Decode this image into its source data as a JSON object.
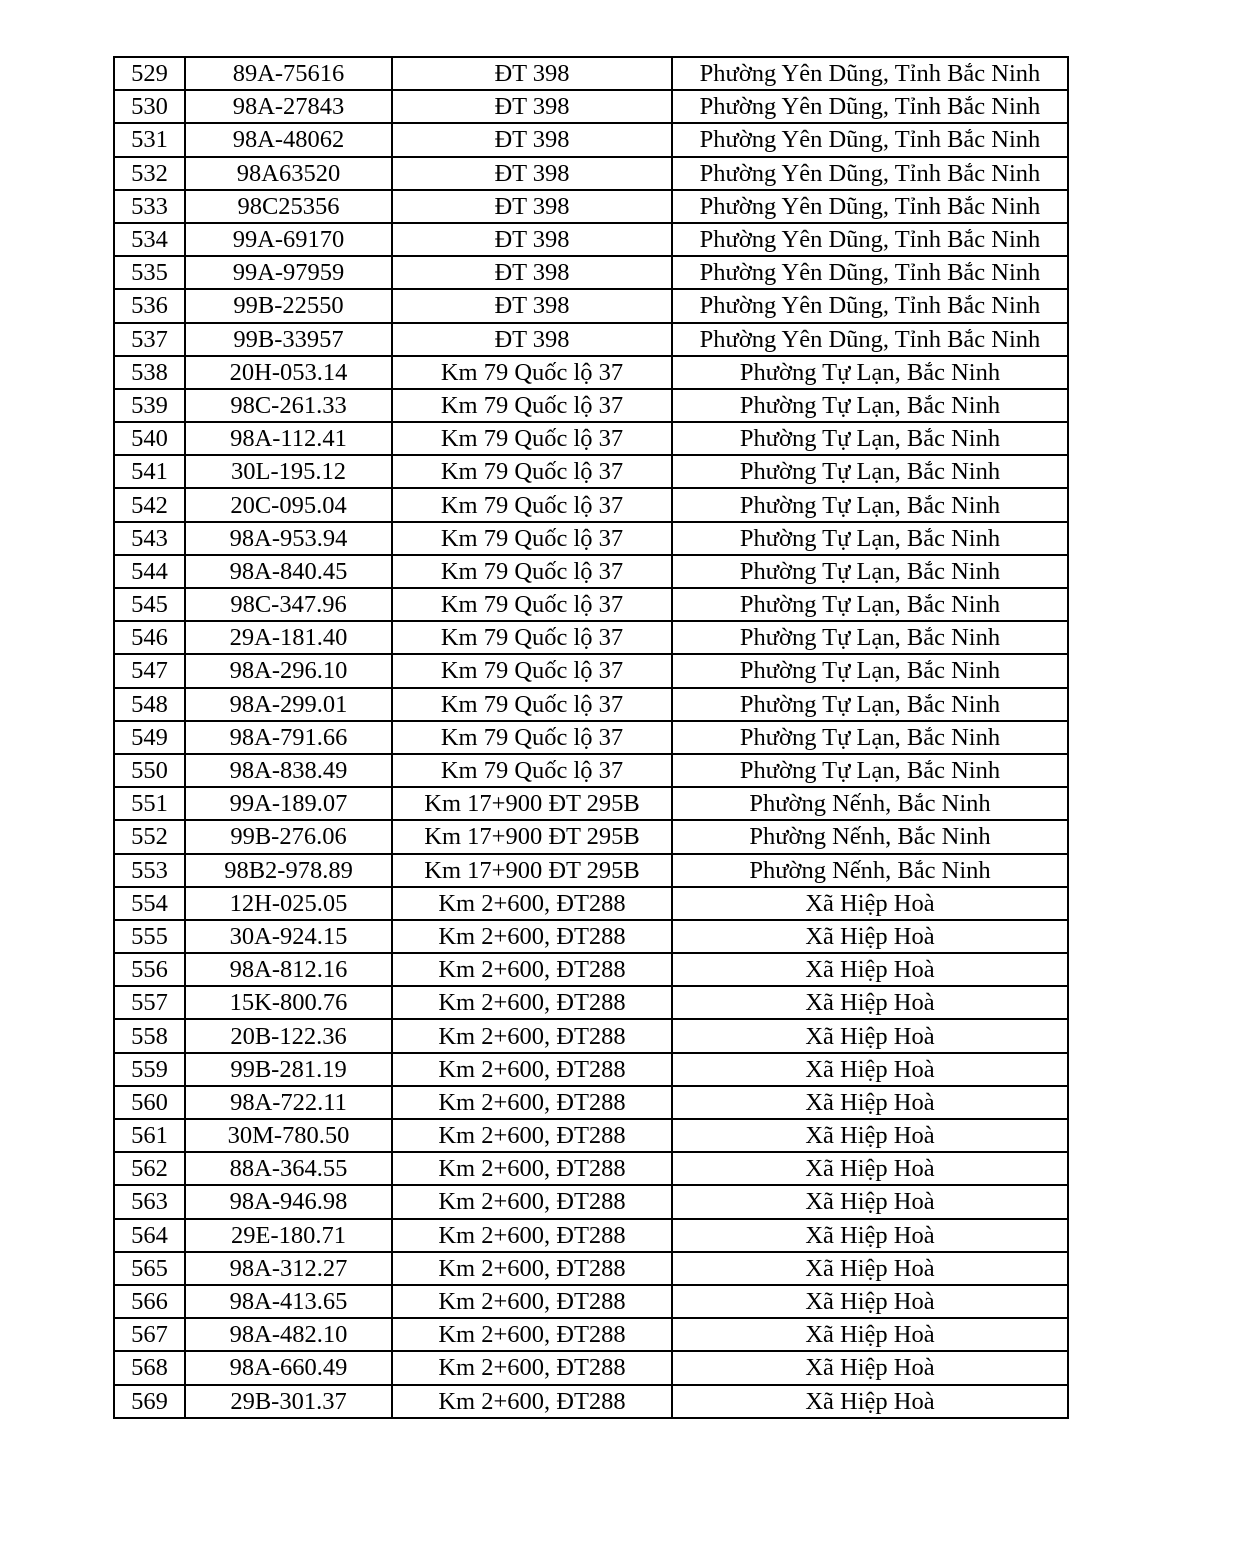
{
  "table": {
    "rows": [
      [
        "529",
        "89A-75616",
        "ĐT 398",
        "Phường Yên Dũng, Tỉnh Bắc Ninh"
      ],
      [
        "530",
        "98A-27843",
        "ĐT 398",
        "Phường Yên Dũng, Tỉnh Bắc Ninh"
      ],
      [
        "531",
        "98A-48062",
        "ĐT 398",
        "Phường Yên Dũng, Tỉnh Bắc Ninh"
      ],
      [
        "532",
        "98A63520",
        "ĐT 398",
        "Phường Yên Dũng, Tỉnh Bắc Ninh"
      ],
      [
        "533",
        "98C25356",
        "ĐT 398",
        "Phường Yên Dũng, Tỉnh Bắc Ninh"
      ],
      [
        "534",
        "99A-69170",
        "ĐT 398",
        "Phường Yên Dũng, Tỉnh Bắc Ninh"
      ],
      [
        "535",
        "99A-97959",
        "ĐT 398",
        "Phường Yên Dũng, Tỉnh Bắc Ninh"
      ],
      [
        "536",
        "99B-22550",
        "ĐT 398",
        "Phường Yên Dũng, Tỉnh Bắc Ninh"
      ],
      [
        "537",
        "99B-33957",
        "ĐT 398",
        "Phường Yên Dũng, Tỉnh Bắc Ninh"
      ],
      [
        "538",
        "20H-053.14",
        "Km 79 Quốc lộ 37",
        "Phường Tự Lạn, Bắc Ninh"
      ],
      [
        "539",
        "98C-261.33",
        "Km 79 Quốc lộ 37",
        "Phường Tự Lạn, Bắc Ninh"
      ],
      [
        "540",
        "98A-112.41",
        "Km 79 Quốc lộ 37",
        "Phường Tự Lạn, Bắc Ninh"
      ],
      [
        "541",
        "30L-195.12",
        "Km 79 Quốc lộ 37",
        "Phường Tự Lạn, Bắc Ninh"
      ],
      [
        "542",
        "20C-095.04",
        "Km 79 Quốc lộ 37",
        "Phường Tự Lạn, Bắc Ninh"
      ],
      [
        "543",
        "98A-953.94",
        "Km 79 Quốc lộ 37",
        "Phường Tự Lạn, Bắc Ninh"
      ],
      [
        "544",
        "98A-840.45",
        "Km 79 Quốc lộ 37",
        "Phường Tự Lạn, Bắc Ninh"
      ],
      [
        "545",
        "98C-347.96",
        "Km 79 Quốc lộ 37",
        "Phường Tự Lạn, Bắc Ninh"
      ],
      [
        "546",
        "29A-181.40",
        "Km 79 Quốc lộ 37",
        "Phường Tự Lạn, Bắc Ninh"
      ],
      [
        "547",
        "98A-296.10",
        "Km 79 Quốc lộ 37",
        "Phường Tự Lạn, Bắc Ninh"
      ],
      [
        "548",
        "98A-299.01",
        "Km 79 Quốc lộ 37",
        "Phường Tự Lạn, Bắc Ninh"
      ],
      [
        "549",
        "98A-791.66",
        "Km 79 Quốc lộ 37",
        "Phường Tự Lạn, Bắc Ninh"
      ],
      [
        "550",
        "98A-838.49",
        "Km 79 Quốc lộ 37",
        "Phường Tự Lạn, Bắc Ninh"
      ],
      [
        "551",
        "99A-189.07",
        "Km 17+900 ĐT 295B",
        "Phường Nếnh, Bắc Ninh"
      ],
      [
        "552",
        "99B-276.06",
        "Km 17+900 ĐT 295B",
        "Phường Nếnh, Bắc Ninh"
      ],
      [
        "553",
        "98B2-978.89",
        "Km 17+900 ĐT 295B",
        "Phường Nếnh, Bắc Ninh"
      ],
      [
        "554",
        "12H-025.05",
        "Km 2+600, ĐT288",
        "Xã Hiệp Hoà"
      ],
      [
        "555",
        "30A-924.15",
        "Km 2+600, ĐT288",
        "Xã Hiệp Hoà"
      ],
      [
        "556",
        "98A-812.16",
        "Km 2+600, ĐT288",
        "Xã Hiệp Hoà"
      ],
      [
        "557",
        "15K-800.76",
        "Km 2+600, ĐT288",
        "Xã Hiệp Hoà"
      ],
      [
        "558",
        "20B-122.36",
        "Km 2+600, ĐT288",
        "Xã Hiệp Hoà"
      ],
      [
        "559",
        "99B-281.19",
        "Km 2+600, ĐT288",
        "Xã Hiệp Hoà"
      ],
      [
        "560",
        "98A-722.11",
        "Km 2+600, ĐT288",
        "Xã Hiệp Hoà"
      ],
      [
        "561",
        "30M-780.50",
        "Km 2+600, ĐT288",
        "Xã Hiệp Hoà"
      ],
      [
        "562",
        "88A-364.55",
        "Km 2+600, ĐT288",
        "Xã Hiệp Hoà"
      ],
      [
        "563",
        "98A-946.98",
        "Km 2+600, ĐT288",
        "Xã Hiệp Hoà"
      ],
      [
        "564",
        "29E-180.71",
        "Km 2+600, ĐT288",
        "Xã Hiệp Hoà"
      ],
      [
        "565",
        "98A-312.27",
        "Km 2+600, ĐT288",
        "Xã Hiệp Hoà"
      ],
      [
        "566",
        "98A-413.65",
        "Km 2+600, ĐT288",
        "Xã Hiệp Hoà"
      ],
      [
        "567",
        "98A-482.10",
        "Km 2+600, ĐT288",
        "Xã Hiệp Hoà"
      ],
      [
        "568",
        "98A-660.49",
        "Km 2+600, ĐT288",
        "Xã Hiệp Hoà"
      ],
      [
        "569",
        "29B-301.37",
        "Km 2+600, ĐT288",
        "Xã Hiệp Hoà"
      ]
    ]
  }
}
